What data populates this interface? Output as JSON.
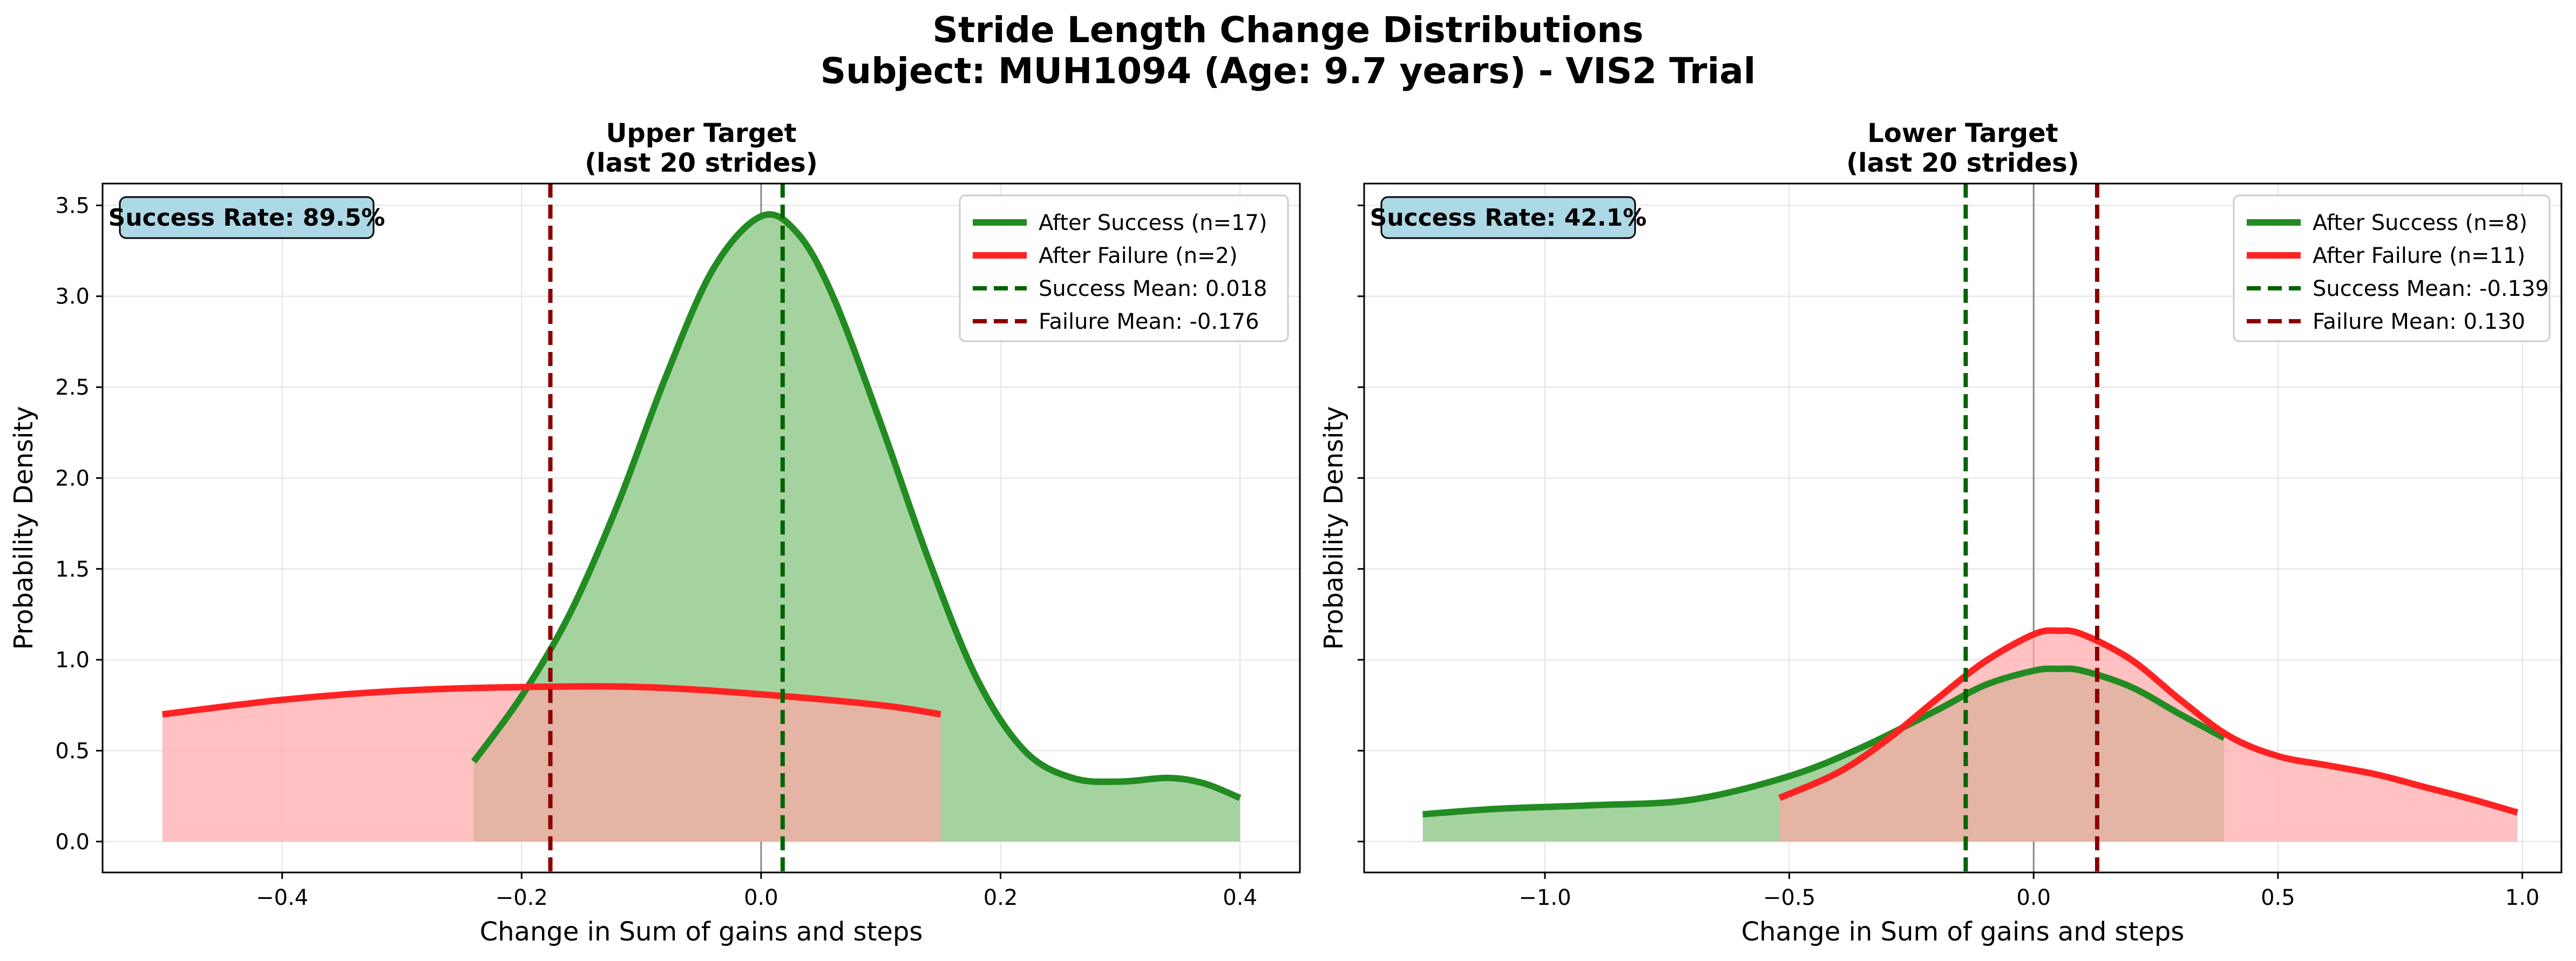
{
  "figure": {
    "title_line1": "Stride Length Change Distributions",
    "title_line2": "Subject: MUH1094 (Age: 9.7 years) - VIS2 Trial"
  },
  "colors": {
    "success": "#228b22",
    "failure": "#ff2222",
    "success_fill": "#a5d3a0",
    "failure_fill": "#ffa6a6",
    "success_mean": "#006400",
    "failure_mean": "#8b0000",
    "badge_bg": "#add8e6"
  },
  "chart_data": [
    {
      "type": "area",
      "title_line1": "Upper Target",
      "title_line2": "(last 20 strides)",
      "xlabel": "Change in Sum of gains and steps",
      "ylabel": "Probability Density",
      "xlim": [
        -0.55,
        0.45
      ],
      "ylim": [
        -0.17,
        3.62
      ],
      "xticks": [
        -0.4,
        -0.2,
        0.0,
        0.2,
        0.4
      ],
      "xtick_labels": [
        "−0.4",
        "−0.2",
        "0.0",
        "0.2",
        "0.4"
      ],
      "yticks": [
        0.0,
        0.5,
        1.0,
        1.5,
        2.0,
        2.5,
        3.0,
        3.5
      ],
      "ytick_labels": [
        "0.0",
        "0.5",
        "1.0",
        "1.5",
        "2.0",
        "2.5",
        "3.0",
        "3.5"
      ],
      "grid": true,
      "legend_position": "top-right",
      "annotation": "Success Rate: 89.5%",
      "series": [
        {
          "name": "After Success (n=17)",
          "kind": "kde",
          "x": [
            -0.24,
            -0.2,
            -0.16,
            -0.12,
            -0.08,
            -0.04,
            0.0,
            0.03,
            0.06,
            0.1,
            0.14,
            0.18,
            0.22,
            0.26,
            0.3,
            0.34,
            0.37,
            0.4
          ],
          "y": [
            0.44,
            0.8,
            1.25,
            1.85,
            2.55,
            3.15,
            3.44,
            3.35,
            3.0,
            2.3,
            1.55,
            0.9,
            0.5,
            0.35,
            0.33,
            0.35,
            0.32,
            0.24
          ]
        },
        {
          "name": "After Failure (n=2)",
          "kind": "kde",
          "x": [
            -0.5,
            -0.4,
            -0.3,
            -0.2,
            -0.1,
            0.0,
            0.1,
            0.15
          ],
          "y": [
            0.7,
            0.78,
            0.83,
            0.85,
            0.85,
            0.81,
            0.75,
            0.7
          ]
        },
        {
          "name": "Success Mean: 0.018",
          "kind": "vline",
          "value": 0.018
        },
        {
          "name": "Failure Mean: -0.176",
          "kind": "vline",
          "value": -0.176
        }
      ]
    },
    {
      "type": "area",
      "title_line1": "Lower Target",
      "title_line2": "(last 20 strides)",
      "xlabel": "Change in Sum of gains and steps",
      "ylabel": "Probability Density",
      "xlim": [
        -1.37,
        1.08
      ],
      "ylim": [
        -0.17,
        3.62
      ],
      "xticks": [
        -1.0,
        -0.5,
        0.0,
        0.5,
        1.0
      ],
      "xtick_labels": [
        "−1.0",
        "−0.5",
        "0.0",
        "0.5",
        "1.0"
      ],
      "yticks": [
        0.0,
        0.5,
        1.0,
        1.5,
        2.0,
        2.5,
        3.0,
        3.5
      ],
      "ytick_labels": [],
      "grid": true,
      "legend_position": "top-right",
      "annotation": "Success Rate: 42.1%",
      "series": [
        {
          "name": "After Success (n=8)",
          "kind": "kde",
          "x": [
            -1.25,
            -1.1,
            -0.9,
            -0.7,
            -0.5,
            -0.35,
            -0.2,
            -0.1,
            0.0,
            0.05,
            0.1,
            0.2,
            0.3,
            0.39
          ],
          "y": [
            0.15,
            0.18,
            0.2,
            0.23,
            0.36,
            0.52,
            0.72,
            0.86,
            0.94,
            0.95,
            0.94,
            0.85,
            0.7,
            0.57
          ]
        },
        {
          "name": "After Failure (n=11)",
          "kind": "kde",
          "x": [
            -0.52,
            -0.4,
            -0.3,
            -0.2,
            -0.1,
            0.0,
            0.05,
            0.1,
            0.2,
            0.3,
            0.4,
            0.5,
            0.6,
            0.7,
            0.8,
            0.9,
            0.99
          ],
          "y": [
            0.24,
            0.38,
            0.56,
            0.78,
            0.99,
            1.14,
            1.16,
            1.14,
            1.0,
            0.78,
            0.58,
            0.47,
            0.42,
            0.37,
            0.3,
            0.23,
            0.16
          ]
        },
        {
          "name": "Success Mean: -0.139",
          "kind": "vline",
          "value": -0.139
        },
        {
          "name": "Failure Mean: 0.130",
          "kind": "vline",
          "value": 0.13
        }
      ]
    }
  ]
}
